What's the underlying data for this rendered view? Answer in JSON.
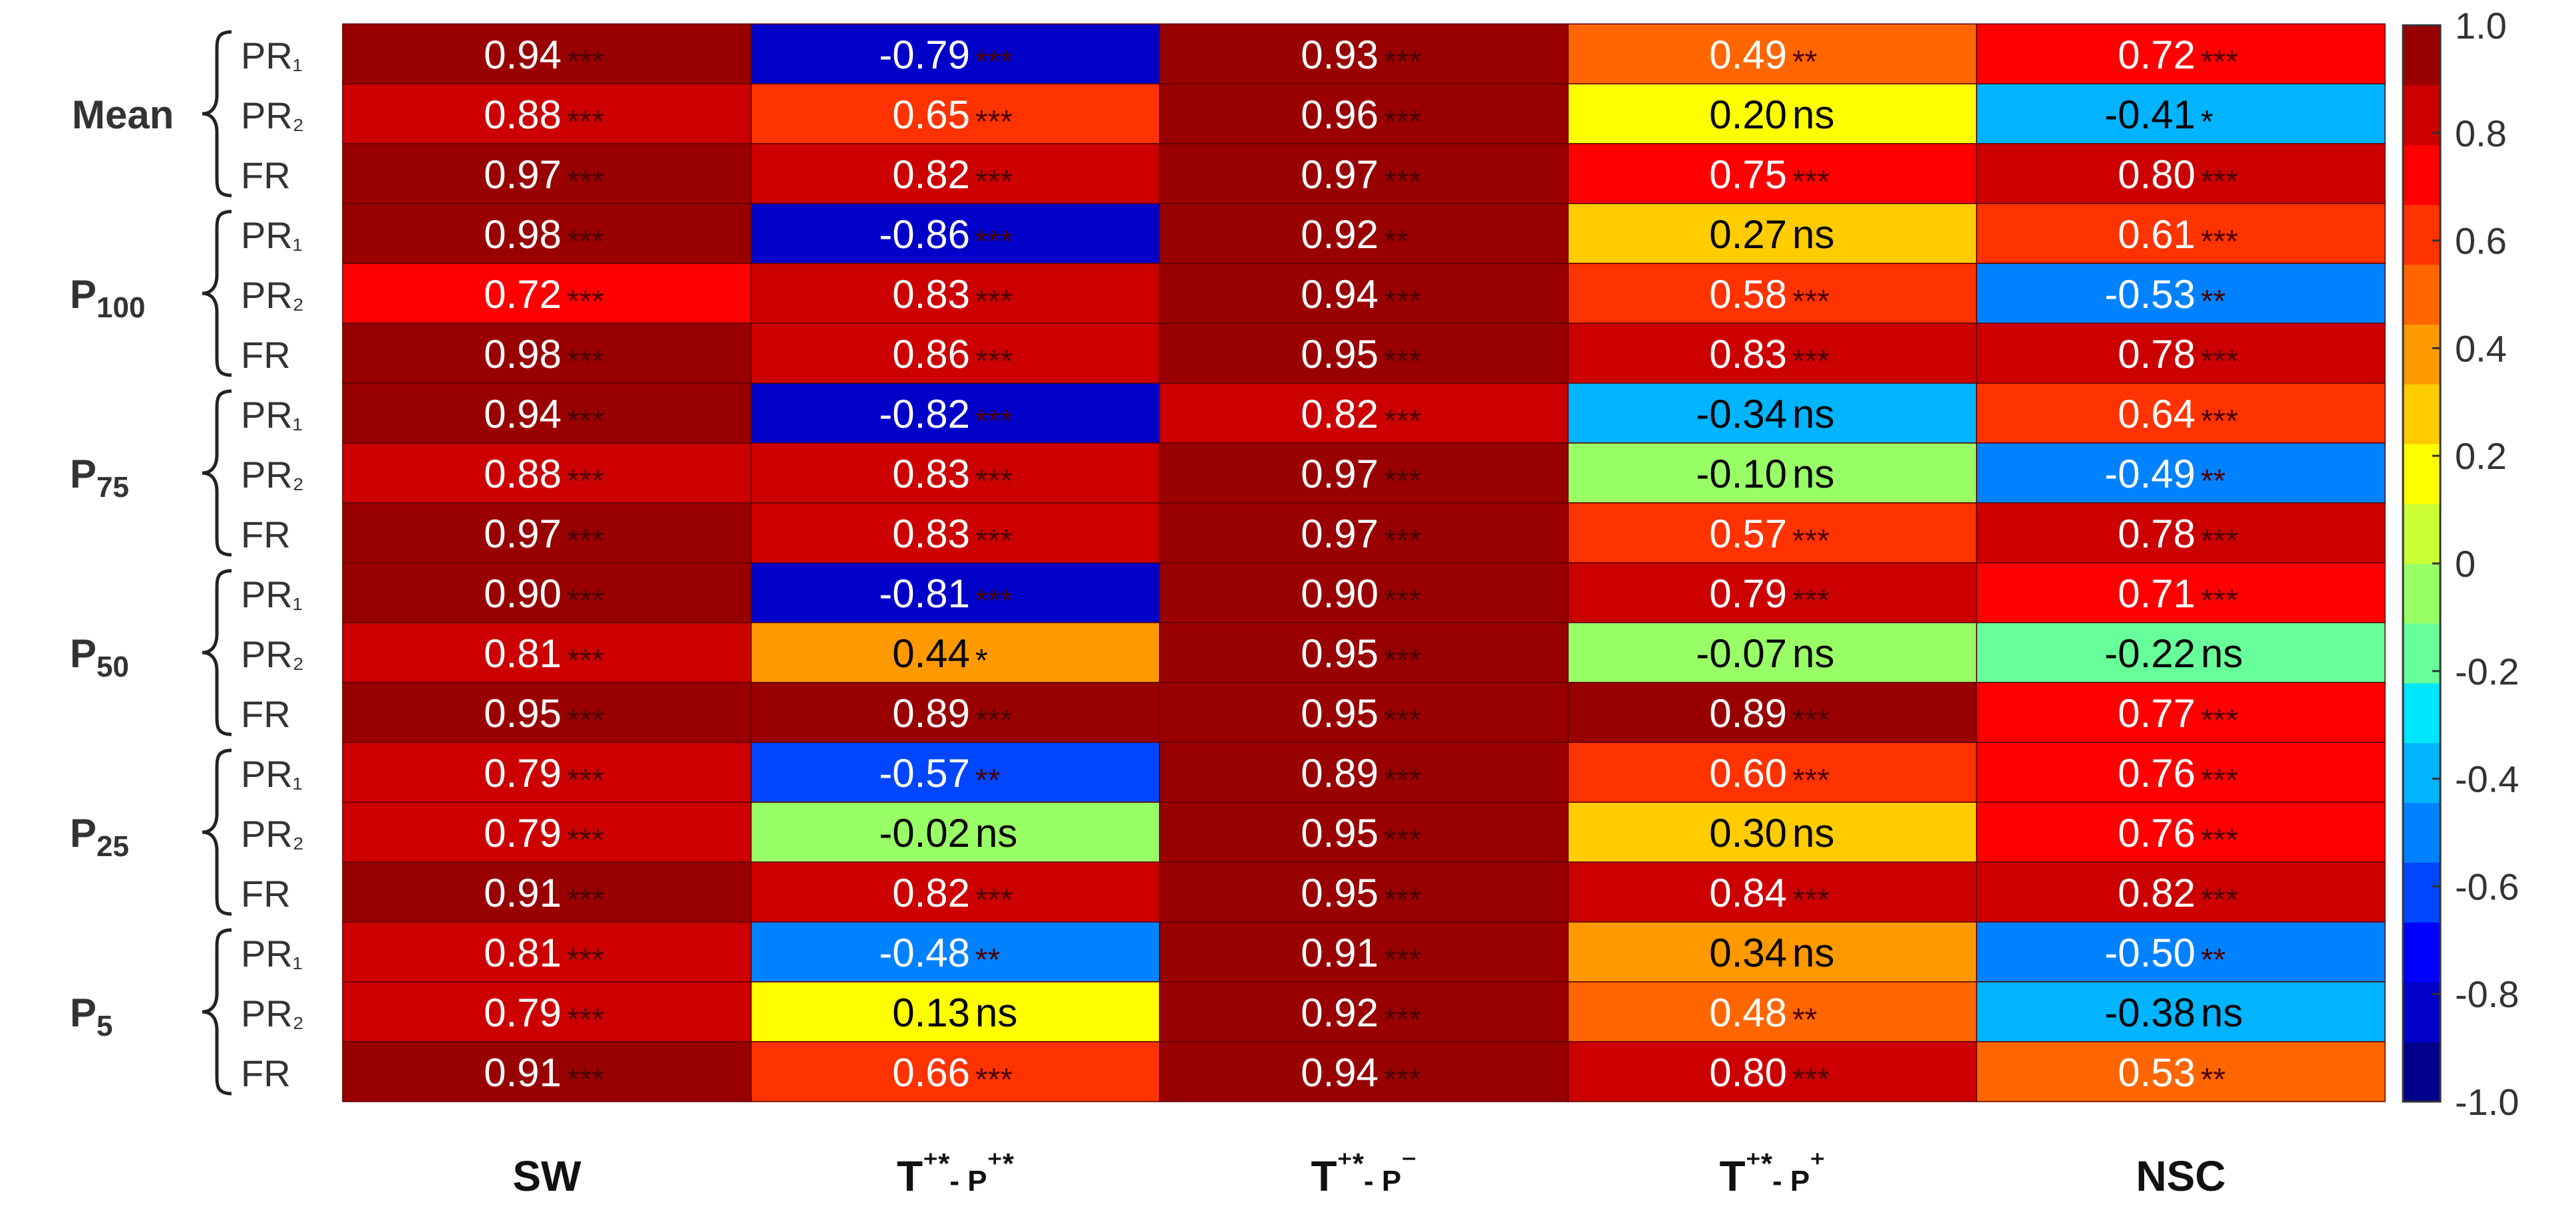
{
  "chart_data": {
    "type": "heatmap",
    "columns": [
      "SW",
      "T⁺*- P⁺*",
      "T⁺*- P⁻",
      "T⁺*- P⁺",
      "NSC"
    ],
    "groups": [
      {
        "label": "Mean",
        "base": "Mean",
        "sub": ""
      },
      {
        "label": "P100",
        "base": "P",
        "sub": "100"
      },
      {
        "label": "P75",
        "base": "P",
        "sub": "75"
      },
      {
        "label": "P50",
        "base": "P",
        "sub": "50"
      },
      {
        "label": "P25",
        "base": "P",
        "sub": "25"
      },
      {
        "label": "P5",
        "base": "P",
        "sub": "5"
      }
    ],
    "row_labels": [
      "PR₁",
      "PR₂",
      "FR"
    ],
    "rows": [
      {
        "group": 0,
        "label": "PR₁",
        "values": [
          0.94,
          -0.79,
          0.93,
          0.49,
          0.72
        ],
        "texts": [
          "0.94",
          "-0.79",
          "0.93",
          "0.49",
          "0.72"
        ],
        "sig": [
          "***",
          "***",
          "***",
          "**",
          "***"
        ]
      },
      {
        "group": 0,
        "label": "PR₂",
        "values": [
          0.88,
          0.65,
          0.96,
          0.2,
          -0.41
        ],
        "texts": [
          "0.88",
          "0.65",
          "0.96",
          "0.20",
          "-0.41"
        ],
        "sig": [
          "***",
          "***",
          "***",
          "ns",
          "*"
        ]
      },
      {
        "group": 0,
        "label": "FR",
        "values": [
          0.97,
          0.82,
          0.97,
          0.75,
          0.8
        ],
        "texts": [
          "0.97",
          "0.82",
          "0.97",
          "0.75",
          "0.80"
        ],
        "sig": [
          "***",
          "***",
          "***",
          "***",
          "***"
        ]
      },
      {
        "group": 1,
        "label": "PR₁",
        "values": [
          0.98,
          -0.86,
          0.92,
          0.27,
          0.61
        ],
        "texts": [
          "0.98",
          "-0.86",
          "0.92",
          "0.27",
          "0.61"
        ],
        "sig": [
          "***",
          "***",
          "**",
          "ns",
          "***"
        ]
      },
      {
        "group": 1,
        "label": "PR₂",
        "values": [
          0.72,
          0.83,
          0.94,
          0.58,
          -0.53
        ],
        "texts": [
          "0.72",
          "0.83",
          "0.94",
          "0.58",
          "-0.53"
        ],
        "sig": [
          "***",
          "***",
          "***",
          "***",
          "**"
        ]
      },
      {
        "group": 1,
        "label": "FR",
        "values": [
          0.98,
          0.86,
          0.95,
          0.83,
          0.78
        ],
        "texts": [
          "0.98",
          "0.86",
          "0.95",
          "0.83",
          "0.78"
        ],
        "sig": [
          "***",
          "***",
          "***",
          "***",
          "***"
        ]
      },
      {
        "group": 2,
        "label": "PR₁",
        "values": [
          0.94,
          -0.82,
          0.82,
          -0.34,
          0.64
        ],
        "texts": [
          "0.94",
          "-0.82",
          "0.82",
          "-0.34",
          "0.64"
        ],
        "sig": [
          "***",
          "***",
          "***",
          "ns",
          "***"
        ]
      },
      {
        "group": 2,
        "label": "PR₂",
        "values": [
          0.88,
          0.83,
          0.97,
          -0.1,
          -0.49
        ],
        "texts": [
          "0.88",
          "0.83",
          "0.97",
          "-0.10",
          "-0.49"
        ],
        "sig": [
          "***",
          "***",
          "***",
          "ns",
          "**"
        ]
      },
      {
        "group": 2,
        "label": "FR",
        "values": [
          0.97,
          0.83,
          0.97,
          0.57,
          0.78
        ],
        "texts": [
          "0.97",
          "0.83",
          "0.97",
          "0.57",
          "0.78"
        ],
        "sig": [
          "***",
          "***",
          "***",
          "***",
          "***"
        ]
      },
      {
        "group": 3,
        "label": "PR₁",
        "values": [
          0.9,
          -0.81,
          0.9,
          0.79,
          0.71
        ],
        "texts": [
          "0.90",
          "-0.81",
          "0.90",
          "0.79",
          "0.71"
        ],
        "sig": [
          "***",
          "***",
          "***",
          "***",
          "***"
        ]
      },
      {
        "group": 3,
        "label": "PR₂",
        "values": [
          0.81,
          0.44,
          0.95,
          -0.07,
          -0.22
        ],
        "texts": [
          "0.81",
          "0.44",
          "0.95",
          "-0.07",
          "-0.22"
        ],
        "sig": [
          "***",
          "*",
          "***",
          "ns",
          "ns"
        ]
      },
      {
        "group": 3,
        "label": "FR",
        "values": [
          0.95,
          0.89,
          0.95,
          0.89,
          0.77
        ],
        "texts": [
          "0.95",
          "0.89",
          "0.95",
          "0.89",
          "0.77"
        ],
        "sig": [
          "***",
          "***",
          "***",
          "***",
          "***"
        ]
      },
      {
        "group": 4,
        "label": "PR₁",
        "values": [
          0.79,
          -0.57,
          0.89,
          0.6,
          0.76
        ],
        "texts": [
          "0.79",
          "-0.57",
          "0.89",
          "0.60",
          "0.76"
        ],
        "sig": [
          "***",
          "**",
          "***",
          "***",
          "***"
        ]
      },
      {
        "group": 4,
        "label": "PR₂",
        "values": [
          0.79,
          -0.02,
          0.95,
          0.3,
          0.76
        ],
        "texts": [
          "0.79",
          "-0.02",
          "0.95",
          "0.30",
          "0.76"
        ],
        "sig": [
          "***",
          "ns",
          "***",
          "ns",
          "***"
        ]
      },
      {
        "group": 4,
        "label": "FR",
        "values": [
          0.91,
          0.82,
          0.95,
          0.84,
          0.82
        ],
        "texts": [
          "0.91",
          "0.82",
          "0.95",
          "0.84",
          "0.82"
        ],
        "sig": [
          "***",
          "***",
          "***",
          "***",
          "***"
        ]
      },
      {
        "group": 5,
        "label": "PR₁",
        "values": [
          0.81,
          -0.48,
          0.91,
          0.34,
          -0.5
        ],
        "texts": [
          "0.81",
          "-0.48",
          "0.91",
          "0.34",
          "-0.50"
        ],
        "sig": [
          "***",
          "**",
          "***",
          "ns",
          "**"
        ]
      },
      {
        "group": 5,
        "label": "PR₂",
        "values": [
          0.79,
          0.13,
          0.92,
          0.48,
          -0.38
        ],
        "texts": [
          "0.79",
          "0.13",
          "0.92",
          "0.48",
          "-0.38"
        ],
        "sig": [
          "***",
          "ns",
          "***",
          "**",
          "ns"
        ]
      },
      {
        "group": 5,
        "label": "FR",
        "values": [
          0.91,
          0.66,
          0.94,
          0.8,
          0.53
        ],
        "texts": [
          "0.91",
          "0.66",
          "0.94",
          "0.80",
          "0.53"
        ],
        "sig": [
          "***",
          "***",
          "***",
          "***",
          "**"
        ]
      }
    ],
    "colorbar": {
      "range": [
        -1.0,
        1.0
      ],
      "ticks": [
        1.0,
        0.8,
        0.6,
        0.4,
        0.2,
        0,
        -0.2,
        -0.4,
        -0.6,
        -0.8,
        -1.0
      ],
      "tick_labels": [
        "1.0",
        "0.8",
        "0.6",
        "0.4",
        "0.2",
        "0",
        "-0.2",
        "-0.4",
        "-0.6",
        "-0.8",
        "-1.0"
      ],
      "colors_low_to_high": [
        "#00008b",
        "#0000c8",
        "#0000ff",
        "#0046ff",
        "#0082ff",
        "#00b4ff",
        "#00e6ff",
        "#66ff99",
        "#99ff66",
        "#ccff33",
        "#ffff00",
        "#ffcc00",
        "#ff9900",
        "#ff6600",
        "#ff3300",
        "#ff0000",
        "#cc0000",
        "#990000"
      ]
    }
  }
}
